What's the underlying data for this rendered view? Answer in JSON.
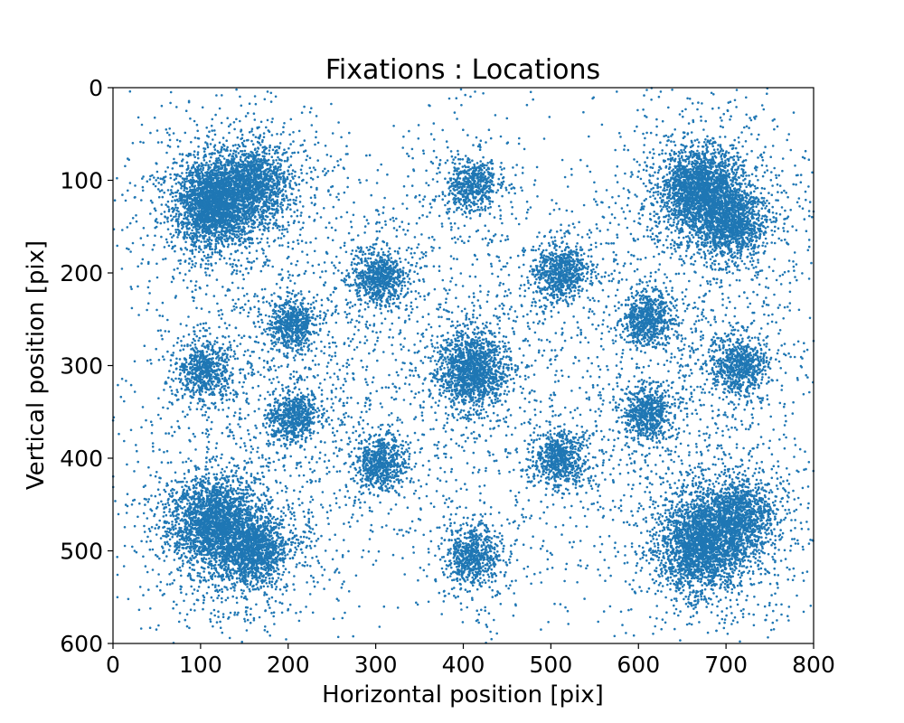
{
  "chart_data": {
    "type": "scatter",
    "title": "Fixations : Locations",
    "xlabel": "Horizontal position [pix]",
    "ylabel": "Vertical position [pix]",
    "xlim": [
      0,
      800
    ],
    "ylim": [
      0,
      600
    ],
    "y_inverted": true,
    "x_ticks": [
      0,
      100,
      200,
      300,
      400,
      500,
      600,
      700,
      800
    ],
    "y_ticks": [
      0,
      100,
      200,
      300,
      400,
      500,
      600
    ],
    "grid": false,
    "marker_color": "#1f77b4",
    "background_noise_points": 2600,
    "clusters": [
      {
        "x": 115,
        "y": 125,
        "points": 2600,
        "spread": 22
      },
      {
        "x": 160,
        "y": 105,
        "points": 1400,
        "spread": 20
      },
      {
        "x": 410,
        "y": 105,
        "points": 600,
        "spread": 14
      },
      {
        "x": 670,
        "y": 110,
        "points": 2200,
        "spread": 22
      },
      {
        "x": 705,
        "y": 145,
        "points": 1400,
        "spread": 20
      },
      {
        "x": 305,
        "y": 205,
        "points": 800,
        "spread": 15
      },
      {
        "x": 510,
        "y": 200,
        "points": 800,
        "spread": 15
      },
      {
        "x": 205,
        "y": 255,
        "points": 700,
        "spread": 14
      },
      {
        "x": 610,
        "y": 250,
        "points": 700,
        "spread": 14
      },
      {
        "x": 105,
        "y": 305,
        "points": 700,
        "spread": 15
      },
      {
        "x": 410,
        "y": 305,
        "points": 1600,
        "spread": 20
      },
      {
        "x": 715,
        "y": 300,
        "points": 800,
        "spread": 16
      },
      {
        "x": 205,
        "y": 355,
        "points": 700,
        "spread": 14
      },
      {
        "x": 610,
        "y": 350,
        "points": 700,
        "spread": 14
      },
      {
        "x": 305,
        "y": 405,
        "points": 700,
        "spread": 14
      },
      {
        "x": 510,
        "y": 400,
        "points": 700,
        "spread": 14
      },
      {
        "x": 115,
        "y": 470,
        "points": 2400,
        "spread": 24
      },
      {
        "x": 160,
        "y": 500,
        "points": 1400,
        "spread": 20
      },
      {
        "x": 410,
        "y": 505,
        "points": 700,
        "spread": 15
      },
      {
        "x": 670,
        "y": 495,
        "points": 2200,
        "spread": 24
      },
      {
        "x": 710,
        "y": 465,
        "points": 1600,
        "spread": 22
      }
    ]
  }
}
